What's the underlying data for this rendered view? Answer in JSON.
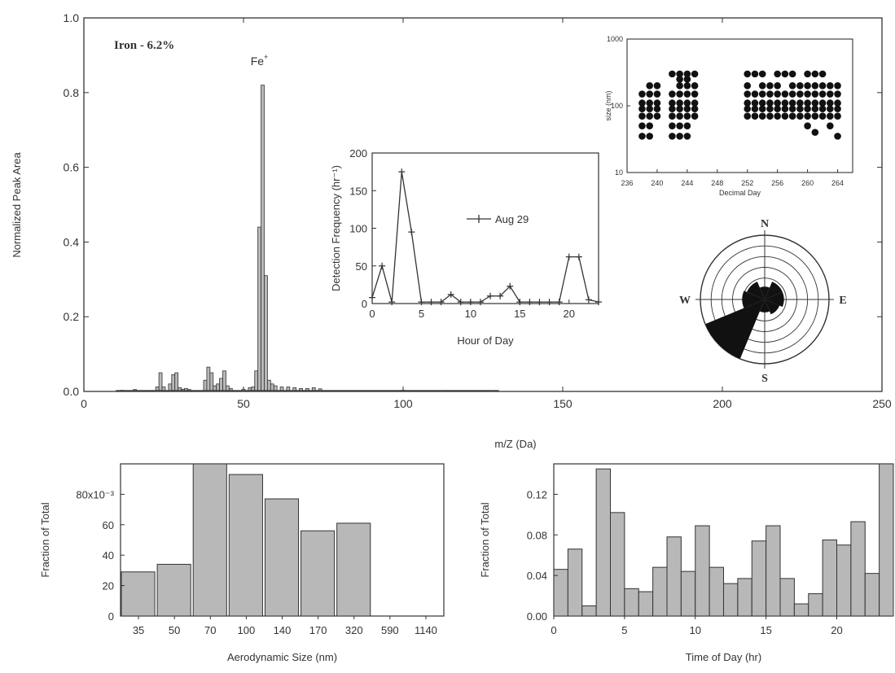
{
  "chart_data": [
    {
      "id": "mass-spectrum",
      "type": "bar",
      "title": "Iron - 6.2%",
      "xlabel": "m/Z (Da)",
      "ylabel": "Normalized Peak Area",
      "xlim": [
        0,
        250
      ],
      "ylim": [
        0,
        1.0
      ],
      "xticks": [
        0,
        50,
        100,
        150,
        200,
        250
      ],
      "yticks": [
        0.0,
        0.2,
        0.4,
        0.6,
        0.8,
        1.0
      ],
      "xtick_labels": [
        "0",
        "50",
        "100",
        "150",
        "200",
        "250"
      ],
      "ytick_labels": [
        "0.0",
        "0.2",
        "0.4",
        "0.6",
        "0.8",
        "1.0"
      ],
      "annotation": {
        "text": "Fe",
        "sup": "+",
        "x": 56
      },
      "x": [
        12,
        16,
        23,
        24,
        25,
        27,
        28,
        29,
        30,
        31,
        32,
        33,
        38,
        39,
        40,
        41,
        42,
        43,
        44,
        45,
        46,
        50,
        52,
        53,
        54,
        55,
        56,
        57,
        58,
        59,
        60,
        62,
        64,
        66,
        68,
        70,
        72,
        74,
        100,
        112,
        128
      ],
      "values": [
        0.003,
        0.005,
        0.012,
        0.05,
        0.012,
        0.02,
        0.045,
        0.05,
        0.01,
        0.006,
        0.008,
        0.005,
        0.03,
        0.065,
        0.05,
        0.015,
        0.02,
        0.035,
        0.055,
        0.015,
        0.008,
        0.006,
        0.01,
        0.012,
        0.055,
        0.44,
        0.82,
        0.31,
        0.03,
        0.02,
        0.015,
        0.012,
        0.012,
        0.01,
        0.008,
        0.008,
        0.01,
        0.007,
        0.003,
        0.002,
        0.002
      ]
    },
    {
      "id": "detection-frequency",
      "type": "line",
      "xlabel": "Hour of Day",
      "ylabel": "Detection Frequency (hr⁻¹)",
      "xlim": [
        0,
        23
      ],
      "ylim": [
        0,
        200
      ],
      "xticks": [
        0,
        5,
        10,
        15,
        20
      ],
      "yticks": [
        0,
        50,
        100,
        150,
        200
      ],
      "xtick_labels": [
        "0",
        "5",
        "10",
        "15",
        "20"
      ],
      "ytick_labels": [
        "0",
        "50",
        "100",
        "150",
        "200"
      ],
      "series": [
        {
          "name": "Aug 29",
          "x": [
            0,
            1,
            2,
            3,
            4,
            5,
            6,
            7,
            8,
            9,
            10,
            11,
            12,
            13,
            14,
            15,
            16,
            17,
            18,
            19,
            20,
            21,
            22,
            23
          ],
          "values": [
            8,
            50,
            2,
            175,
            95,
            2,
            2,
            2,
            12,
            2,
            2,
            2,
            10,
            10,
            23,
            2,
            2,
            2,
            2,
            2,
            62,
            62,
            5,
            2
          ]
        }
      ]
    },
    {
      "id": "size-vs-day",
      "type": "scatter",
      "xlabel": "Decimal Day",
      "ylabel": "size (nm)",
      "xlim": [
        236,
        266
      ],
      "ylim": [
        10,
        1000
      ],
      "yscale": "log",
      "xticks": [
        236,
        240,
        244,
        248,
        252,
        256,
        260,
        264
      ],
      "yticks": [
        10,
        100,
        1000
      ],
      "xtick_labels": [
        "236",
        "240",
        "244",
        "248",
        "252",
        "256",
        "260",
        "264"
      ],
      "ytick_labels": [
        "10",
        "100",
        "1000"
      ],
      "x": [
        238,
        238,
        238,
        238,
        238,
        238,
        239,
        239,
        239,
        239,
        239,
        239,
        239,
        240,
        240,
        240,
        240,
        240,
        242,
        242,
        242,
        242,
        242,
        242,
        242,
        243,
        243,
        243,
        243,
        243,
        243,
        243,
        243,
        243,
        244,
        244,
        244,
        244,
        244,
        244,
        244,
        244,
        244,
        245,
        245,
        245,
        245,
        245,
        245,
        252,
        252,
        252,
        252,
        252,
        252,
        253,
        253,
        253,
        253,
        253,
        254,
        254,
        254,
        254,
        254,
        254,
        255,
        255,
        255,
        255,
        255,
        256,
        256,
        256,
        256,
        256,
        256,
        257,
        257,
        257,
        257,
        257,
        258,
        258,
        258,
        258,
        258,
        258,
        259,
        259,
        259,
        259,
        259,
        260,
        260,
        260,
        260,
        260,
        260,
        260,
        261,
        261,
        261,
        261,
        261,
        261,
        261,
        262,
        262,
        262,
        262,
        262,
        262,
        263,
        263,
        263,
        263,
        263,
        263,
        264,
        264,
        264,
        264,
        264,
        264
      ],
      "values": [
        35,
        50,
        70,
        90,
        110,
        150,
        35,
        50,
        70,
        90,
        110,
        150,
        200,
        70,
        90,
        110,
        150,
        200,
        35,
        50,
        70,
        90,
        110,
        150,
        300,
        35,
        50,
        70,
        90,
        110,
        150,
        200,
        250,
        300,
        35,
        50,
        70,
        90,
        110,
        150,
        200,
        250,
        300,
        70,
        90,
        110,
        150,
        200,
        300,
        70,
        90,
        110,
        150,
        200,
        300,
        70,
        90,
        110,
        150,
        300,
        70,
        90,
        110,
        150,
        200,
        300,
        70,
        90,
        110,
        150,
        200,
        70,
        90,
        110,
        150,
        200,
        300,
        70,
        90,
        110,
        150,
        300,
        70,
        90,
        110,
        150,
        200,
        300,
        70,
        90,
        110,
        150,
        200,
        50,
        70,
        90,
        110,
        150,
        200,
        300,
        40,
        70,
        90,
        110,
        150,
        200,
        300,
        70,
        90,
        110,
        150,
        200,
        300,
        50,
        70,
        90,
        110,
        150,
        200,
        35,
        70,
        90,
        110,
        150,
        200
      ]
    },
    {
      "id": "wind-rose",
      "type": "pie",
      "directions": [
        "N",
        "E",
        "S",
        "W"
      ],
      "sectors": [
        {
          "direction": "SW",
          "value": 1.0
        },
        {
          "direction": "W",
          "value": 0.35
        },
        {
          "direction": "NW",
          "value": 0.3
        },
        {
          "direction": "N",
          "value": 0.2
        },
        {
          "direction": "NE",
          "value": 0.3
        },
        {
          "direction": "E",
          "value": 0.3
        },
        {
          "direction": "SE",
          "value": 0.25
        },
        {
          "direction": "S",
          "value": 0.2
        }
      ]
    },
    {
      "id": "size-distribution",
      "type": "bar",
      "xlabel": "Aerodynamic Size (nm)",
      "ylabel": "Fraction of Total",
      "ylim": [
        0,
        0.1
      ],
      "yticks": [
        0,
        20,
        40,
        60,
        80
      ],
      "ytick_labels": [
        "0",
        "20",
        "40",
        "60",
        "80x10⁻³"
      ],
      "categories": [
        "35",
        "50",
        "70",
        "100",
        "140",
        "170",
        "320",
        "590",
        "1140"
      ],
      "values": [
        0.029,
        0.034,
        0.1,
        0.093,
        0.077,
        0.056,
        0.061,
        0,
        0
      ]
    },
    {
      "id": "time-of-day",
      "type": "bar",
      "xlabel": "Time of Day (hr)",
      "ylabel": "Fraction of Total",
      "xlim": [
        0,
        24
      ],
      "ylim": [
        0,
        0.15
      ],
      "xticks": [
        0,
        5,
        10,
        15,
        20
      ],
      "yticks": [
        0,
        0.04,
        0.08,
        0.12
      ],
      "xtick_labels": [
        "0",
        "5",
        "10",
        "15",
        "20"
      ],
      "ytick_labels": [
        "0.00",
        "0.04",
        "0.08",
        "0.12"
      ],
      "x": [
        0,
        1,
        2,
        3,
        4,
        5,
        6,
        7,
        8,
        9,
        10,
        11,
        12,
        13,
        14,
        15,
        16,
        17,
        18,
        19,
        20,
        21,
        22,
        23
      ],
      "values": [
        0.046,
        0.066,
        0.01,
        0.145,
        0.102,
        0.027,
        0.024,
        0.048,
        0.078,
        0.044,
        0.089,
        0.048,
        0.032,
        0.037,
        0.074,
        0.089,
        0.037,
        0.012,
        0.022,
        0.075,
        0.07,
        0.093,
        0.042,
        0.155
      ]
    }
  ]
}
